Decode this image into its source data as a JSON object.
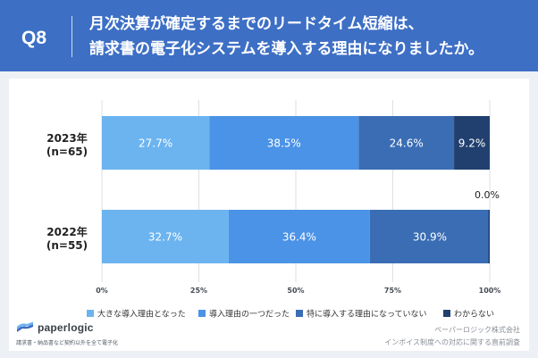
{
  "header": {
    "question_label": "Q8",
    "title_line_1": "月次決算が確定するまでのリードタイム短縮は、",
    "title_line_2": "請求書の電子化システムを導入する理由になりましたか。"
  },
  "chart_data": {
    "type": "bar",
    "orientation": "horizontal",
    "stacking": "percent",
    "categories": [
      "2023年",
      "2022年"
    ],
    "category_sublabels": [
      "(n=65)",
      "(n=55)"
    ],
    "series": [
      {
        "name": "大きな導入理由となった",
        "color": "#6cb4f0",
        "values": [
          27.7,
          32.7
        ]
      },
      {
        "name": "導入理由の一つだった",
        "color": "#4b93e6",
        "values": [
          38.5,
          36.4
        ]
      },
      {
        "name": "特に導入する理由になっていない",
        "color": "#3a6db4",
        "values": [
          24.6,
          30.9
        ]
      },
      {
        "name": "わからない",
        "color": "#21406f",
        "values": [
          9.2,
          0.0
        ]
      }
    ],
    "xlim": [
      0,
      100
    ],
    "xticks": [
      0,
      25,
      50,
      75,
      100
    ],
    "grid": true,
    "legend": "bottom"
  },
  "footer": {
    "brand": "paperlogic",
    "tagline": "請求書・納品書など契約以外を全て電子化",
    "source_line_1": "ペーパーロジック株式会社",
    "source_line_2": "インボイス制度への対応に関する直前調査"
  }
}
